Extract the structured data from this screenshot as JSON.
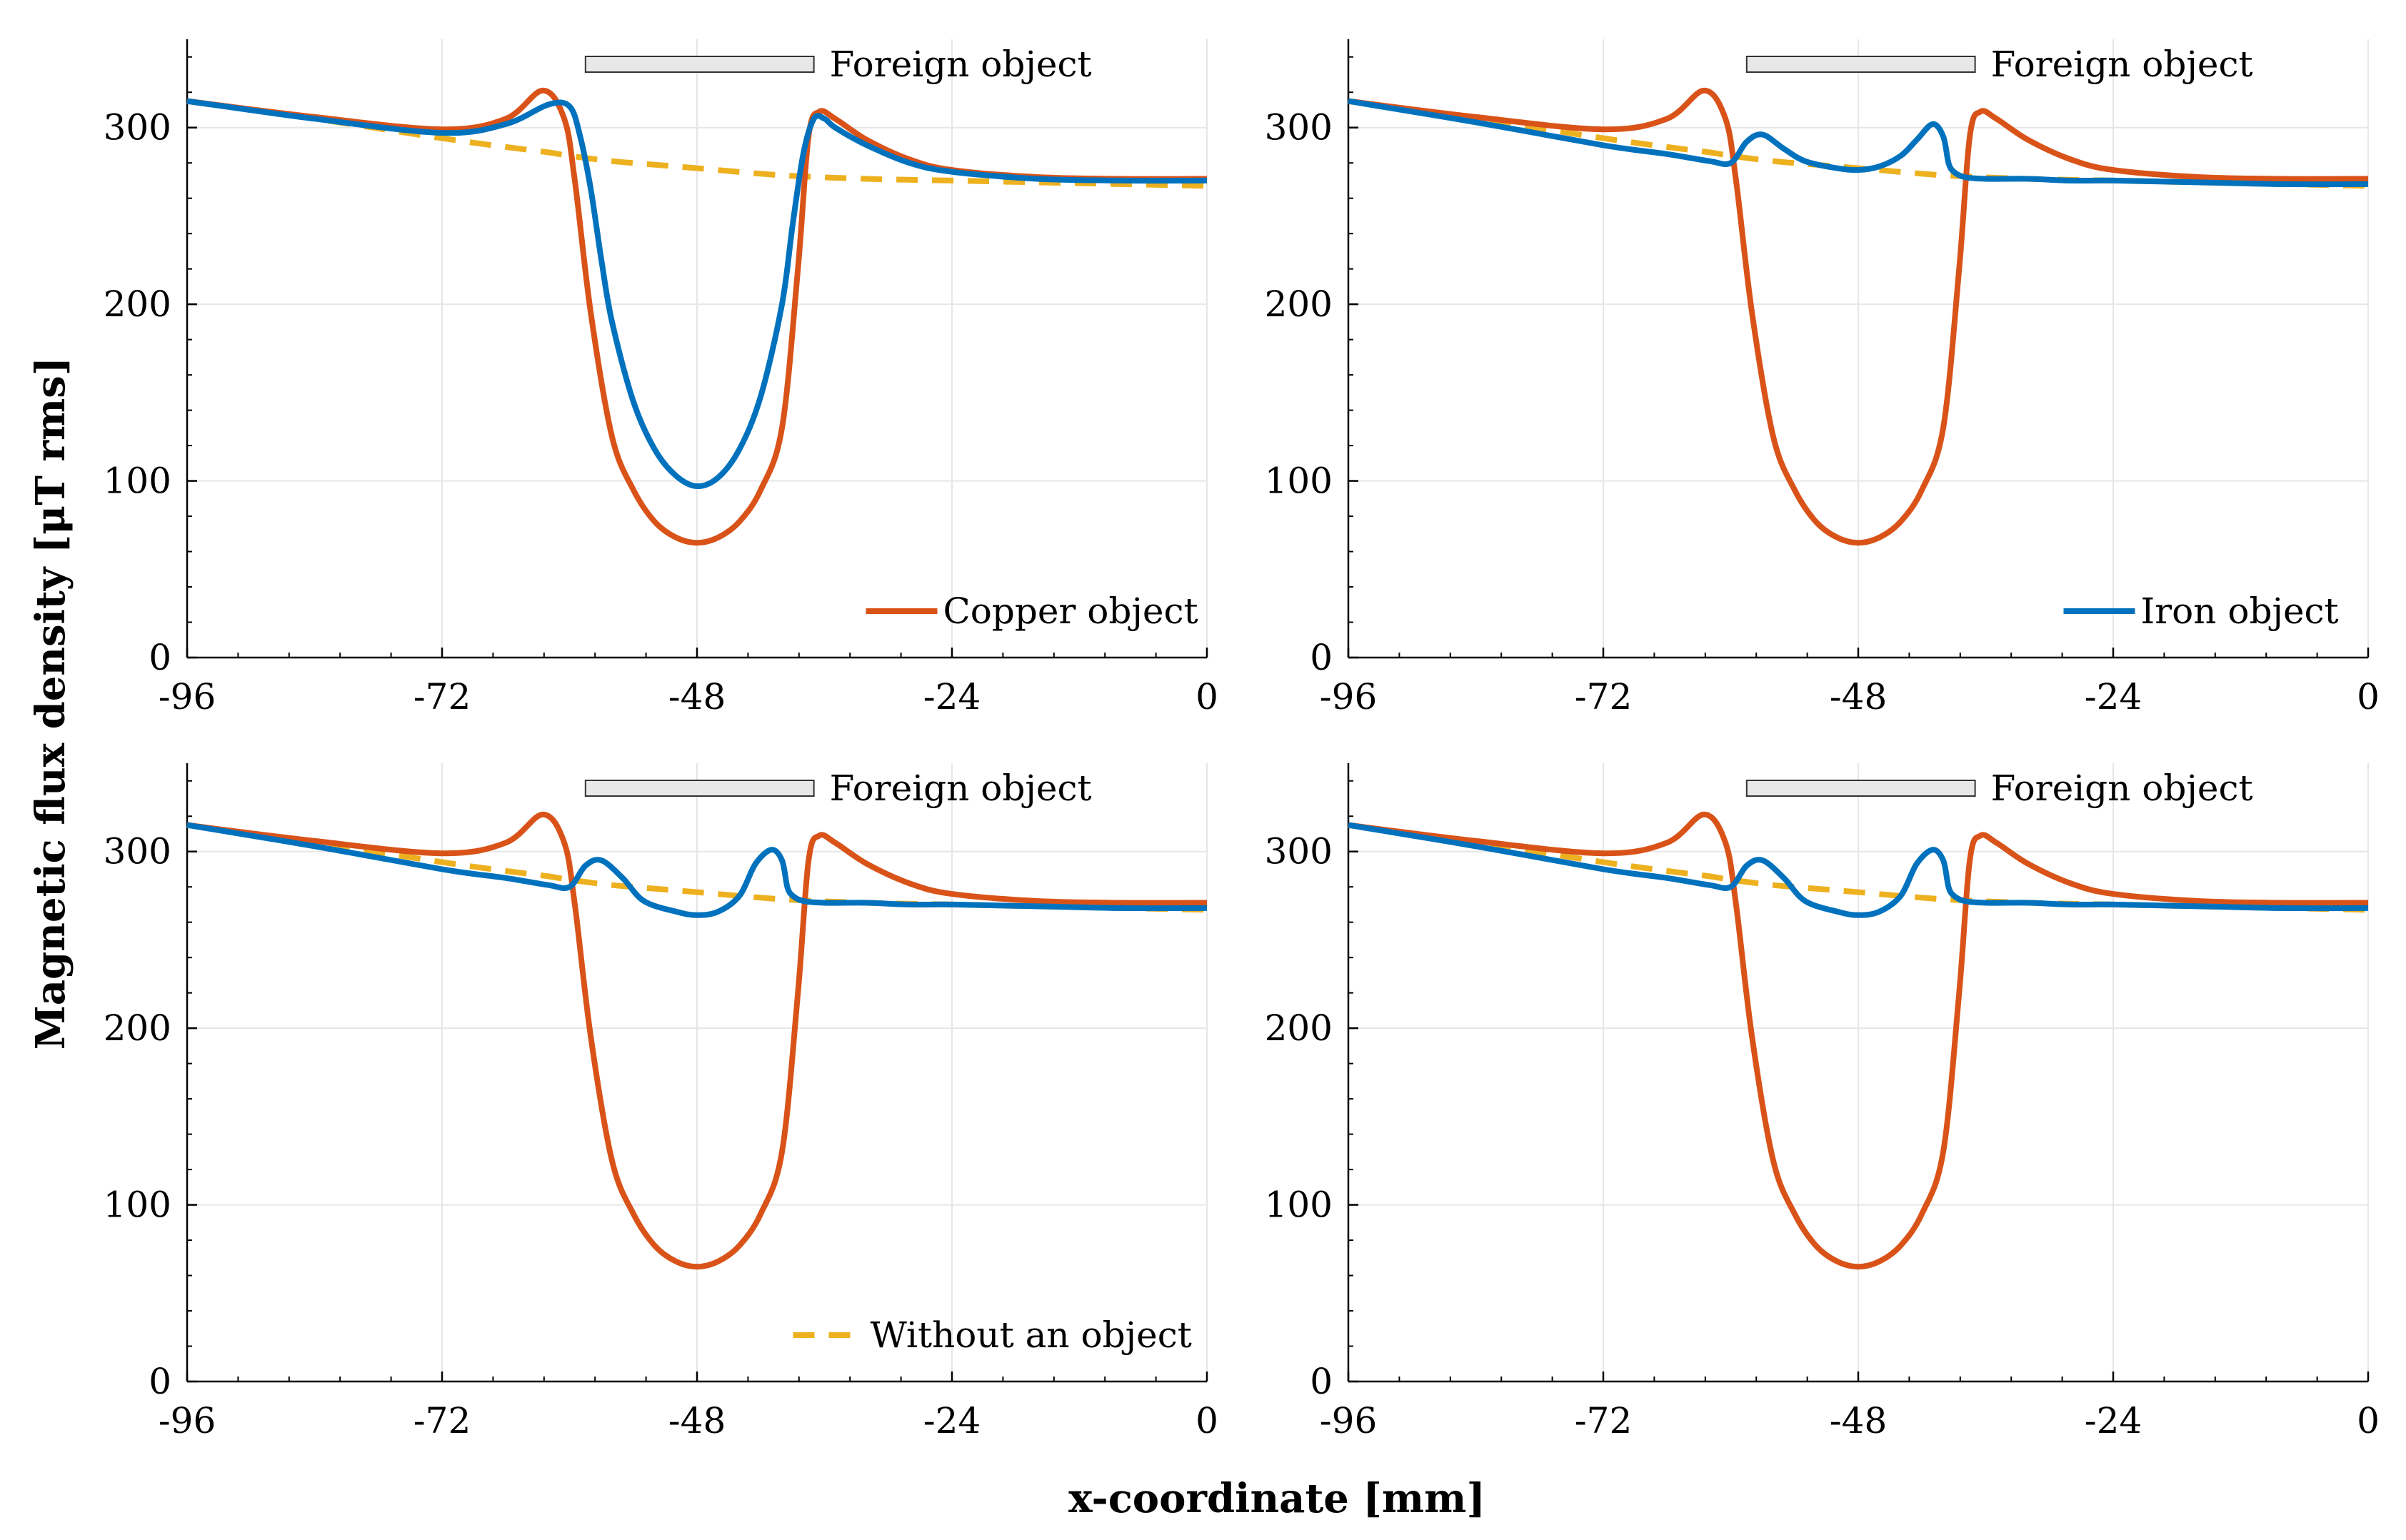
{
  "figure": {
    "ylabel": "Magnetic flux density [μT rms]",
    "xlabel": "x-coordinate [mm]"
  },
  "colors": {
    "copper": "#D95319",
    "iron": "#0072BD",
    "none": "#EDB120",
    "grid": "#e6e6e6",
    "bar_fill": "#e8e8e8"
  },
  "chart_data": [
    {
      "id": "top-left",
      "type": "line",
      "title": "",
      "xlim": [
        -96,
        0
      ],
      "ylim": [
        0,
        350
      ],
      "xticks": [
        -96,
        -72,
        -48,
        -24,
        0
      ],
      "yticks": [
        0,
        100,
        200,
        300
      ],
      "grid": true,
      "annotation": {
        "label": "Foreign object",
        "x_range": [
          -58.5,
          -37
        ]
      },
      "legend": {
        "position": "bottom-right",
        "entry": "Copper object",
        "series": "copper"
      },
      "series": [
        {
          "name": "Copper object",
          "key": "copper",
          "x": [
            -96,
            -84,
            -72,
            -66,
            -62.5,
            -60.5,
            -59.5,
            -58,
            -56,
            -54,
            -52,
            -50,
            -48,
            -46,
            -44,
            -42,
            -40,
            -38.5,
            -37.5,
            -36.5,
            -35,
            -32,
            -28,
            -24,
            -16,
            -8,
            0
          ],
          "y": [
            315,
            306,
            299,
            305,
            321,
            305,
            270,
            195,
            125,
            95,
            77,
            68,
            65,
            68,
            77,
            95,
            130,
            220,
            295,
            309,
            305,
            293,
            282,
            276,
            272,
            271,
            271
          ]
        },
        {
          "name": "Iron object",
          "key": "iron",
          "x": [
            -96,
            -84,
            -72,
            -66,
            -62,
            -60,
            -59,
            -58,
            -57,
            -56,
            -54,
            -52,
            -50,
            -48,
            -46,
            -44,
            -42,
            -40,
            -39,
            -38,
            -37,
            -36,
            -35,
            -32,
            -28,
            -24,
            -16,
            -8,
            0
          ],
          "y": [
            315,
            305,
            297,
            302,
            313,
            312,
            295,
            265,
            225,
            190,
            145,
            118,
            103,
            97,
            102,
            118,
            148,
            200,
            245,
            285,
            305,
            305,
            300,
            290,
            280,
            275,
            271,
            270,
            270
          ]
        },
        {
          "name": "Without an object",
          "key": "none",
          "dashed": true,
          "x": [
            -96,
            -84,
            -72,
            -66,
            -62,
            -60,
            -56,
            -52,
            -48,
            -40,
            -32,
            -24,
            -16,
            -8,
            0
          ],
          "y": [
            315,
            305,
            294,
            289,
            286,
            284,
            281,
            279,
            277,
            273,
            271,
            270,
            269,
            268,
            267
          ]
        }
      ]
    },
    {
      "id": "top-right",
      "type": "line",
      "title": "",
      "xlim": [
        -96,
        0
      ],
      "ylim": [
        0,
        350
      ],
      "xticks": [
        -96,
        -72,
        -48,
        -24,
        0
      ],
      "yticks": [
        0,
        100,
        200,
        300
      ],
      "grid": true,
      "annotation": {
        "label": "Foreign object",
        "x_range": [
          -58.5,
          -37
        ]
      },
      "legend": {
        "position": "bottom-right",
        "entry": "Iron object",
        "series": "iron"
      },
      "series": [
        {
          "name": "Copper object",
          "key": "copper",
          "x": [
            -96,
            -84,
            -72,
            -66,
            -62.5,
            -60.5,
            -59.5,
            -58,
            -56,
            -54,
            -52,
            -50,
            -48,
            -46,
            -44,
            -42,
            -40,
            -38.5,
            -37.5,
            -36.5,
            -35,
            -32,
            -28,
            -24,
            -16,
            -8,
            0
          ],
          "y": [
            315,
            306,
            299,
            305,
            321,
            305,
            270,
            195,
            125,
            95,
            77,
            68,
            65,
            68,
            77,
            95,
            130,
            220,
            295,
            309,
            305,
            293,
            282,
            276,
            272,
            271,
            271
          ]
        },
        {
          "name": "Iron object",
          "key": "iron",
          "x": [
            -96,
            -84,
            -72,
            -66,
            -62,
            -60,
            -58.5,
            -57,
            -55,
            -53,
            -50,
            -48,
            -46,
            -44,
            -42.5,
            -41,
            -40,
            -39.5,
            -39,
            -38,
            -36,
            -32,
            -28,
            -24,
            -16,
            -8,
            0
          ],
          "y": [
            315,
            303,
            290,
            285,
            281,
            280,
            292,
            296,
            288,
            281,
            277,
            276,
            278,
            284,
            293,
            302,
            295,
            280,
            275,
            272,
            271,
            271,
            270,
            270,
            269,
            268,
            268
          ]
        },
        {
          "name": "Without an object",
          "key": "none",
          "dashed": true,
          "x": [
            -96,
            -84,
            -72,
            -66,
            -62,
            -60,
            -56,
            -52,
            -48,
            -40,
            -32,
            -24,
            -16,
            -8,
            0
          ],
          "y": [
            315,
            305,
            294,
            289,
            286,
            284,
            281,
            279,
            277,
            273,
            271,
            270,
            269,
            268,
            267
          ]
        }
      ]
    },
    {
      "id": "bottom-left",
      "type": "line",
      "title": "",
      "xlim": [
        -96,
        0
      ],
      "ylim": [
        0,
        350
      ],
      "xticks": [
        -96,
        -72,
        -48,
        -24,
        0
      ],
      "yticks": [
        0,
        100,
        200,
        300
      ],
      "grid": true,
      "annotation": {
        "label": "Foreign object",
        "x_range": [
          -58.5,
          -37
        ]
      },
      "legend": {
        "position": "bottom-right",
        "entry": "Without an object",
        "series": "none"
      },
      "series": [
        {
          "name": "Copper object",
          "key": "copper",
          "x": [
            -96,
            -84,
            -72,
            -66,
            -62.5,
            -60.5,
            -59.5,
            -58,
            -56,
            -54,
            -52,
            -50,
            -48,
            -46,
            -44,
            -42,
            -40,
            -38.5,
            -37.5,
            -36.5,
            -35,
            -32,
            -28,
            -24,
            -16,
            -8,
            0
          ],
          "y": [
            315,
            306,
            299,
            305,
            321,
            305,
            270,
            195,
            125,
            95,
            77,
            68,
            65,
            68,
            77,
            95,
            130,
            220,
            295,
            309,
            305,
            293,
            282,
            276,
            272,
            271,
            271
          ]
        },
        {
          "name": "Iron object",
          "key": "iron",
          "x": [
            -96,
            -84,
            -72,
            -66,
            -62,
            -60,
            -58.5,
            -57,
            -55,
            -53,
            -50,
            -48,
            -46,
            -44,
            -42.5,
            -41,
            -40,
            -39.5,
            -39,
            -38,
            -36,
            -32,
            -28,
            -24,
            -16,
            -8,
            0
          ],
          "y": [
            315,
            303,
            290,
            285,
            281,
            280,
            292,
            295,
            285,
            272,
            266,
            264,
            266,
            275,
            293,
            301,
            295,
            280,
            275,
            272,
            271,
            271,
            270,
            270,
            269,
            268,
            268
          ]
        },
        {
          "name": "Without an object",
          "key": "none",
          "dashed": true,
          "x": [
            -96,
            -84,
            -72,
            -66,
            -62,
            -60,
            -56,
            -52,
            -48,
            -40,
            -32,
            -24,
            -16,
            -8,
            0
          ],
          "y": [
            315,
            305,
            294,
            289,
            286,
            284,
            281,
            279,
            277,
            273,
            271,
            270,
            269,
            268,
            267
          ]
        }
      ]
    },
    {
      "id": "bottom-right",
      "type": "line",
      "title": "",
      "xlim": [
        -96,
        0
      ],
      "ylim": [
        0,
        350
      ],
      "xticks": [
        -96,
        -72,
        -48,
        -24,
        0
      ],
      "yticks": [
        0,
        100,
        200,
        300
      ],
      "grid": true,
      "annotation": {
        "label": "Foreign object",
        "x_range": [
          -58.5,
          -37
        ]
      },
      "legend": null,
      "series": [
        {
          "name": "Copper object",
          "key": "copper",
          "x": [
            -96,
            -84,
            -72,
            -66,
            -62.5,
            -60.5,
            -59.5,
            -58,
            -56,
            -54,
            -52,
            -50,
            -48,
            -46,
            -44,
            -42,
            -40,
            -38.5,
            -37.5,
            -36.5,
            -35,
            -32,
            -28,
            -24,
            -16,
            -8,
            0
          ],
          "y": [
            315,
            306,
            299,
            305,
            321,
            305,
            270,
            195,
            125,
            95,
            77,
            68,
            65,
            68,
            77,
            95,
            130,
            220,
            295,
            309,
            305,
            293,
            282,
            276,
            272,
            271,
            271
          ]
        },
        {
          "name": "Iron object",
          "key": "iron",
          "x": [
            -96,
            -84,
            -72,
            -66,
            -62,
            -60,
            -58.5,
            -57,
            -55,
            -53,
            -50,
            -48,
            -46,
            -44,
            -42.5,
            -41,
            -40,
            -39.5,
            -39,
            -38,
            -36,
            -32,
            -28,
            -24,
            -16,
            -8,
            0
          ],
          "y": [
            315,
            303,
            290,
            285,
            281,
            280,
            292,
            295,
            285,
            272,
            266,
            264,
            266,
            275,
            293,
            301,
            295,
            280,
            275,
            272,
            271,
            271,
            270,
            270,
            269,
            268,
            268
          ]
        },
        {
          "name": "Without an object",
          "key": "none",
          "dashed": true,
          "x": [
            -96,
            -84,
            -72,
            -66,
            -62,
            -60,
            -56,
            -52,
            -48,
            -40,
            -32,
            -24,
            -16,
            -8,
            0
          ],
          "y": [
            315,
            305,
            294,
            289,
            286,
            284,
            281,
            279,
            277,
            273,
            271,
            270,
            269,
            268,
            267
          ]
        }
      ]
    }
  ]
}
